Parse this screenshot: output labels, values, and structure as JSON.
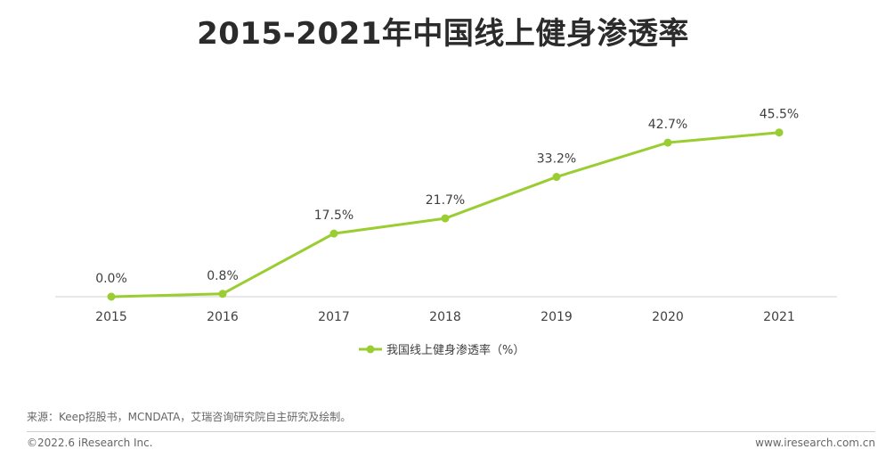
{
  "chart_data": {
    "type": "line",
    "title": "2015-2021年中国线上健身渗透率",
    "categories": [
      "2015",
      "2016",
      "2017",
      "2018",
      "2019",
      "2020",
      "2021"
    ],
    "series": [
      {
        "name": "我国线上健身渗透率（%）",
        "values": [
          0.0,
          0.8,
          17.5,
          21.7,
          33.2,
          42.7,
          45.5
        ],
        "labels": [
          "0.0%",
          "0.8%",
          "17.5%",
          "21.7%",
          "33.2%",
          "42.7%",
          "45.5%"
        ],
        "color": "#9ACD32"
      }
    ],
    "xlabel": "",
    "ylabel": "",
    "ylim": [
      0,
      70
    ],
    "grid": false,
    "legend_position": "bottom"
  },
  "footer": {
    "source": "来源：Keep招股书，MCNDATA，艾瑞咨询研究院自主研究及绘制。",
    "copyright": "©2022.6 iResearch Inc.",
    "website": "www.iresearch.com.cn"
  },
  "colors": {
    "line": "#9ACD32",
    "axis": "#d0d0d0",
    "text": "#333333"
  }
}
